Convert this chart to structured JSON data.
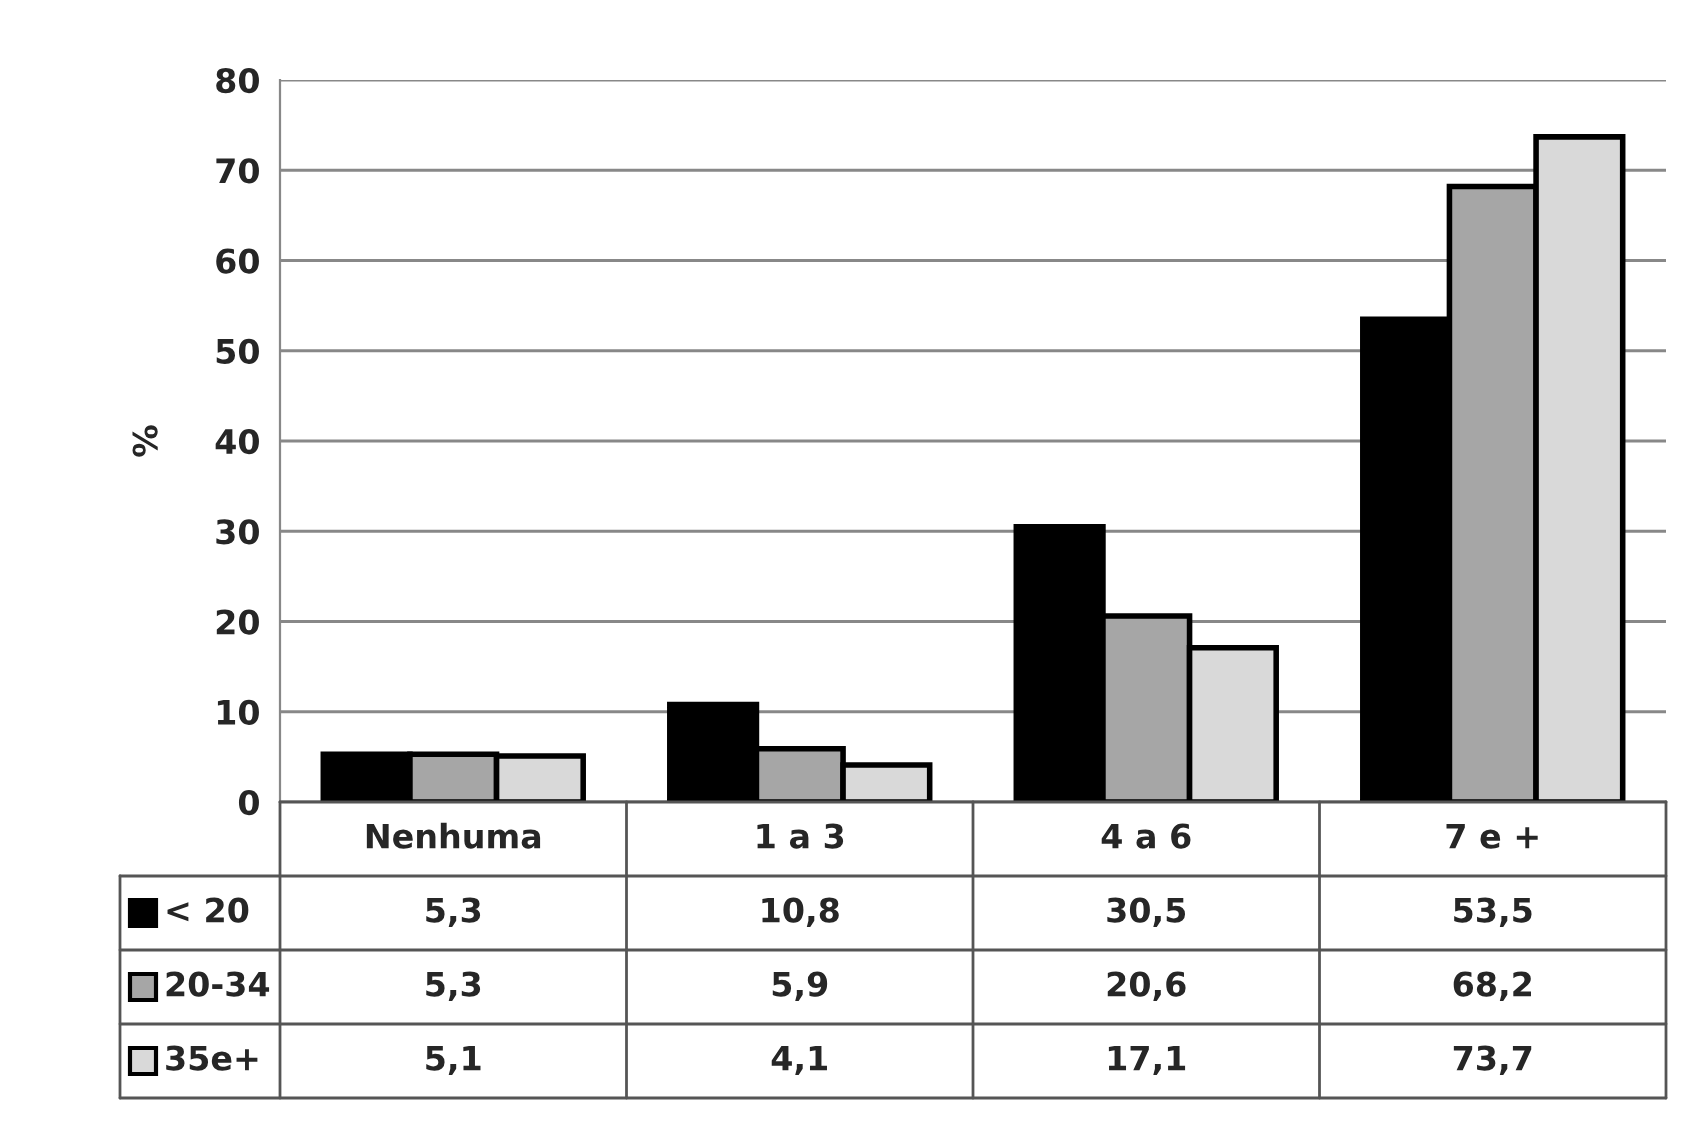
{
  "chart_data": {
    "type": "bar",
    "ylabel": "%",
    "categories": [
      "Nenhuma",
      "1 a 3",
      "4 a 6",
      "7 e +"
    ],
    "series": [
      {
        "name": "< 20",
        "color": "#000000",
        "values": [
          5.3,
          10.8,
          30.5,
          53.5
        ],
        "value_labels": [
          "5,3",
          "10,8",
          "30,5",
          "53,5"
        ]
      },
      {
        "name": "20-34",
        "color": "#a6a6a6",
        "values": [
          5.3,
          5.9,
          20.6,
          68.2
        ],
        "value_labels": [
          "5,3",
          "5,9",
          "20,6",
          "68,2"
        ]
      },
      {
        "name": "35e+",
        "color": "#d9d9d9",
        "values": [
          5.1,
          4.1,
          17.1,
          73.7
        ],
        "value_labels": [
          "5,1",
          "4,1",
          "17,1",
          "73,7"
        ]
      }
    ],
    "ylim": [
      0,
      80
    ],
    "yticks": [
      0,
      10,
      20,
      30,
      40,
      50,
      60,
      70,
      80
    ],
    "grid": "y",
    "legend": "bottom"
  }
}
